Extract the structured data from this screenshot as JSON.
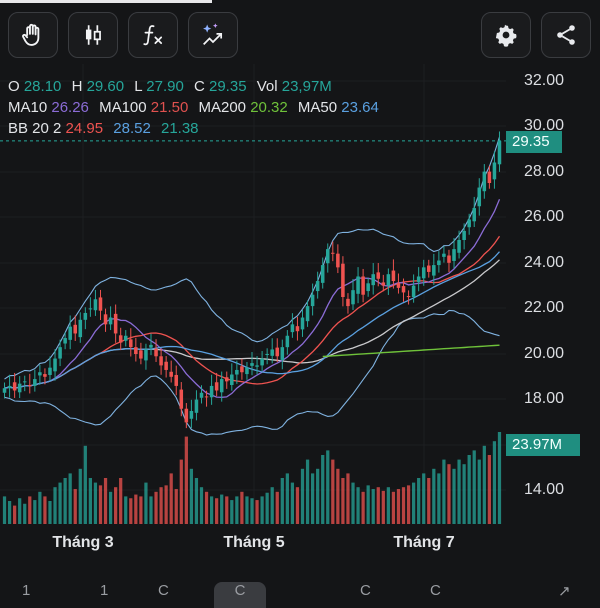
{
  "toolbar": {
    "tools": [
      {
        "icon": "hand-icon"
      },
      {
        "icon": "candlestick-icon"
      },
      {
        "icon": "function-icon"
      },
      {
        "icon": "magic-trend-icon"
      }
    ],
    "right_tools": [
      {
        "icon": "gear-icon"
      },
      {
        "icon": "share-icon"
      }
    ]
  },
  "legend": {
    "ohlc": [
      {
        "label": "O",
        "value": "28.10",
        "color": "#26a69a"
      },
      {
        "label": "H",
        "value": "29.60",
        "color": "#26a69a"
      },
      {
        "label": "L",
        "value": "27.90",
        "color": "#26a69a"
      },
      {
        "label": "C",
        "value": "29.35",
        "color": "#26a69a"
      },
      {
        "label": "Vol",
        "value": "23,97M",
        "color": "#26a69a"
      }
    ],
    "ma": [
      {
        "label": "MA10",
        "value": "26.26",
        "color": "#8b6cd6"
      },
      {
        "label": "MA100",
        "value": "21.50",
        "color": "#e0514f"
      },
      {
        "label": "MA200",
        "value": "20.32",
        "color": "#6fc23a"
      },
      {
        "label": "MA50",
        "value": "23.64",
        "color": "#5aa0e0"
      }
    ],
    "bb": {
      "label": "BB 20 2",
      "values": [
        {
          "value": "24.95",
          "color": "#ef5350"
        },
        {
          "value": "28.52",
          "color": "#5aa0e0"
        },
        {
          "value": "21.38",
          "color": "#26a69a"
        }
      ]
    }
  },
  "price_badge": "29.35",
  "volume_badge": "23.97M",
  "colors": {
    "up": "#26a69a",
    "down": "#ef5350",
    "badge": "#1f8e80"
  },
  "chart_data": {
    "type": "candlestick",
    "y_ticks": [
      "32.00",
      "30.00",
      "28.00",
      "26.00",
      "24.00",
      "22.00",
      "20.00",
      "18.00",
      "14.00"
    ],
    "x_ticks": [
      "Tháng 3",
      "Tháng 5",
      "Tháng 7"
    ],
    "last_close": 29.35,
    "last_volume": "23.97M",
    "close": [
      18.5,
      18.6,
      18.4,
      18.7,
      18.8,
      18.6,
      18.9,
      19.2,
      19.0,
      19.4,
      19.8,
      20.3,
      20.7,
      21.2,
      20.9,
      21.5,
      21.8,
      22.0,
      22.4,
      21.9,
      21.3,
      21.6,
      20.9,
      20.5,
      20.8,
      20.3,
      20.0,
      19.8,
      20.2,
      20.4,
      19.9,
      19.5,
      19.3,
      19.0,
      18.6,
      17.6,
      17.0,
      17.5,
      18.0,
      18.3,
      18.1,
      18.6,
      18.4,
      18.9,
      18.8,
      19.1,
      19.3,
      19.2,
      19.4,
      19.6,
      19.5,
      19.8,
      20.0,
      20.2,
      19.9,
      20.3,
      20.8,
      21.3,
      21.0,
      21.6,
      22.1,
      22.6,
      23.2,
      23.9,
      24.6,
      24.4,
      23.8,
      22.5,
      22.1,
      22.8,
      23.4,
      22.6,
      23.1,
      23.5,
      23.3,
      23.0,
      23.5,
      23.2,
      22.9,
      22.7,
      22.5,
      23.0,
      23.4,
      23.8,
      23.6,
      23.9,
      24.1,
      24.4,
      24.0,
      24.6,
      25.0,
      25.4,
      25.9,
      26.4,
      27.3,
      28.0,
      27.5,
      28.4,
      29.35
    ],
    "volume_rel": [
      0.3,
      0.25,
      0.2,
      0.28,
      0.22,
      0.3,
      0.26,
      0.35,
      0.3,
      0.25,
      0.4,
      0.45,
      0.5,
      0.55,
      0.38,
      0.6,
      0.85,
      0.5,
      0.45,
      0.42,
      0.5,
      0.35,
      0.4,
      0.5,
      0.3,
      0.28,
      0.32,
      0.3,
      0.45,
      0.3,
      0.35,
      0.4,
      0.42,
      0.55,
      0.38,
      0.7,
      0.95,
      0.6,
      0.5,
      0.4,
      0.35,
      0.3,
      0.28,
      0.32,
      0.3,
      0.26,
      0.3,
      0.35,
      0.3,
      0.28,
      0.26,
      0.3,
      0.34,
      0.4,
      0.35,
      0.5,
      0.55,
      0.45,
      0.4,
      0.6,
      0.7,
      0.55,
      0.6,
      0.75,
      0.8,
      0.7,
      0.6,
      0.5,
      0.55,
      0.45,
      0.4,
      0.35,
      0.42,
      0.38,
      0.4,
      0.36,
      0.4,
      0.35,
      0.38,
      0.4,
      0.42,
      0.45,
      0.5,
      0.55,
      0.5,
      0.6,
      0.55,
      0.7,
      0.65,
      0.6,
      0.7,
      0.65,
      0.75,
      0.8,
      0.7,
      0.85,
      0.75,
      0.9,
      1.0
    ]
  },
  "bottombar": [
    "1",
    "1",
    "C",
    "C",
    "C",
    "C"
  ]
}
